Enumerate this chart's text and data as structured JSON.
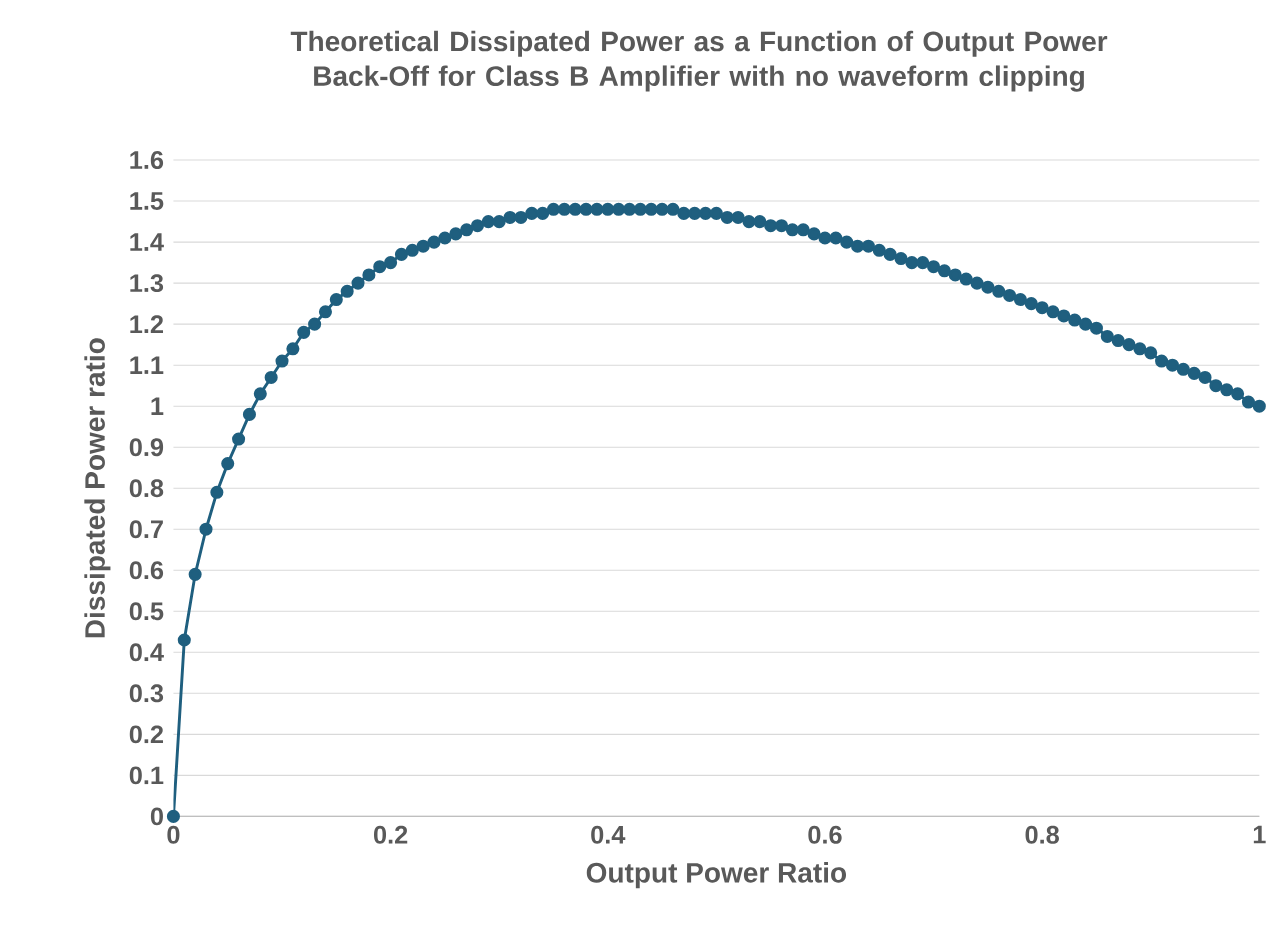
{
  "chart_data": {
    "type": "line",
    "title": "Theoretical Dissipated Power as a Function of Output Power Back-Off for Class B Amplifier with no waveform clipping",
    "xlabel": "Output Power Ratio",
    "ylabel": "Dissipated Power ratio",
    "x": [
      0,
      0.01,
      0.02,
      0.03,
      0.04,
      0.05,
      0.06,
      0.07,
      0.08,
      0.09,
      0.1,
      0.11,
      0.12,
      0.13,
      0.14,
      0.15,
      0.16,
      0.17,
      0.18,
      0.19,
      0.2,
      0.21,
      0.22,
      0.23,
      0.24,
      0.25,
      0.26,
      0.27,
      0.28,
      0.29,
      0.3,
      0.31,
      0.32,
      0.33,
      0.34,
      0.35,
      0.36,
      0.37,
      0.38,
      0.39,
      0.4,
      0.41,
      0.42,
      0.43,
      0.44,
      0.45,
      0.46,
      0.47,
      0.48,
      0.49,
      0.5,
      0.51,
      0.52,
      0.53,
      0.54,
      0.55,
      0.56,
      0.57,
      0.58,
      0.59,
      0.6,
      0.61,
      0.62,
      0.63,
      0.64,
      0.65,
      0.66,
      0.67,
      0.68,
      0.69,
      0.7,
      0.71,
      0.72,
      0.73,
      0.74,
      0.75,
      0.76,
      0.77,
      0.78,
      0.79,
      0.8,
      0.81,
      0.82,
      0.83,
      0.84,
      0.85,
      0.86,
      0.87,
      0.88,
      0.89,
      0.9,
      0.91,
      0.92,
      0.93,
      0.94,
      0.95,
      0.96,
      0.97,
      0.98,
      0.99,
      1
    ],
    "series": [
      {
        "color": "#1f5f7f",
        "values": [
          0,
          0.43,
          0.59,
          0.7,
          0.79,
          0.86,
          0.92,
          0.98,
          1.03,
          1.07,
          1.11,
          1.14,
          1.18,
          1.2,
          1.23,
          1.26,
          1.28,
          1.3,
          1.32,
          1.34,
          1.35,
          1.37,
          1.38,
          1.39,
          1.4,
          1.41,
          1.42,
          1.43,
          1.44,
          1.45,
          1.45,
          1.46,
          1.46,
          1.47,
          1.47,
          1.48,
          1.48,
          1.48,
          1.48,
          1.48,
          1.48,
          1.48,
          1.48,
          1.48,
          1.48,
          1.48,
          1.48,
          1.47,
          1.47,
          1.47,
          1.47,
          1.46,
          1.46,
          1.45,
          1.45,
          1.44,
          1.44,
          1.43,
          1.43,
          1.42,
          1.41,
          1.41,
          1.4,
          1.39,
          1.39,
          1.38,
          1.37,
          1.36,
          1.35,
          1.35,
          1.34,
          1.33,
          1.32,
          1.31,
          1.3,
          1.29,
          1.28,
          1.27,
          1.26,
          1.25,
          1.24,
          1.23,
          1.22,
          1.21,
          1.2,
          1.19,
          1.17,
          1.16,
          1.15,
          1.14,
          1.13,
          1.11,
          1.1,
          1.09,
          1.08,
          1.07,
          1.05,
          1.04,
          1.03,
          1.01,
          1
        ]
      }
    ],
    "xlim": [
      0,
      1
    ],
    "xticks": [
      0,
      0.2,
      0.4,
      0.6,
      0.8,
      1
    ],
    "ylim": [
      0,
      1.6
    ],
    "yticks": [
      0,
      0.1,
      0.2,
      0.3,
      0.4,
      0.5,
      0.6,
      0.7,
      0.8,
      0.9,
      1,
      1.1,
      1.2,
      1.3,
      1.4,
      1.5,
      1.6
    ],
    "grid": "y",
    "marker": "circle",
    "line_style": "solid",
    "legend": false
  }
}
